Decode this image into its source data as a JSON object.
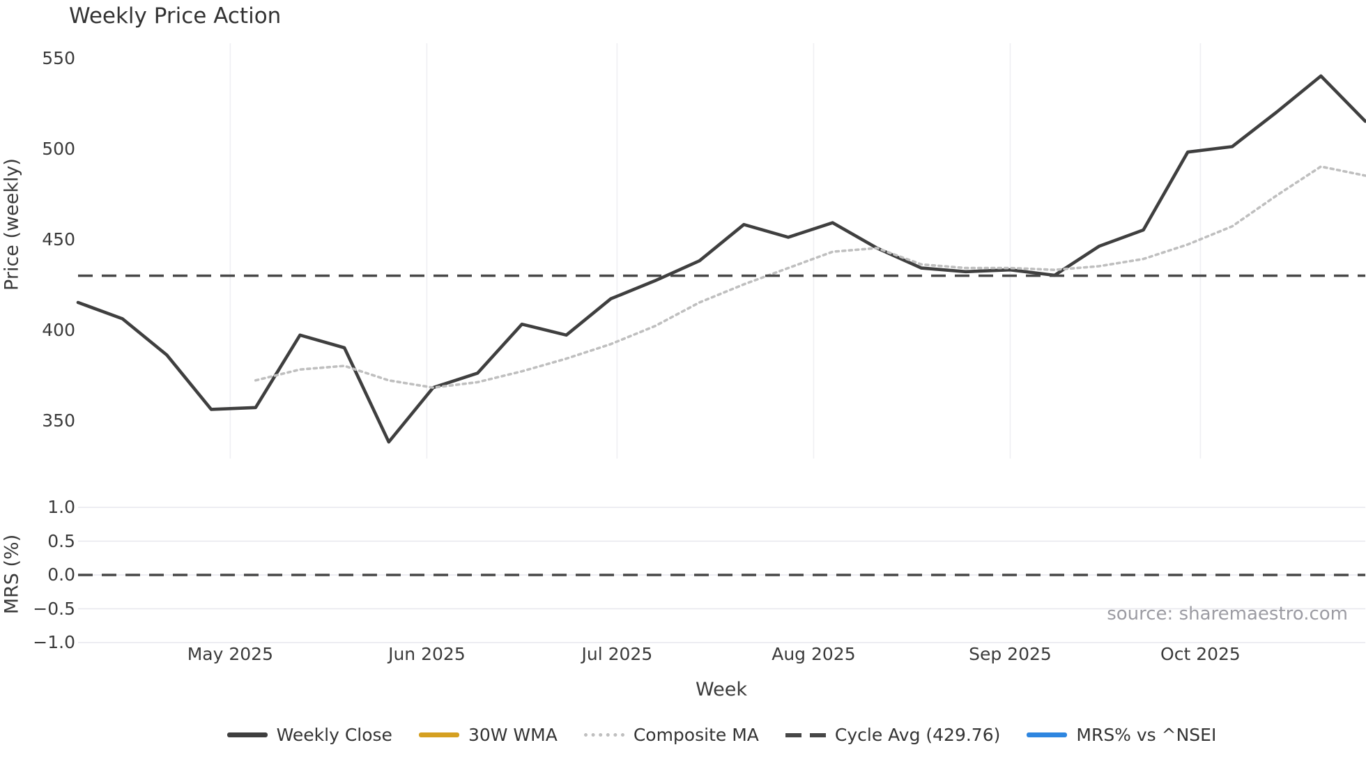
{
  "chart_data": {
    "type": "line",
    "title": "Weekly Price Action",
    "xlabel": "Week",
    "source_note": "source: sharemaestro.com",
    "x_tick_labels": [
      "May 2025",
      "Jun 2025",
      "Jul 2025",
      "Aug 2025",
      "Sep 2025",
      "Oct 2025"
    ],
    "x_tick_week_offsets": [
      3.4286,
      7.8571,
      12.1429,
      16.5714,
      21.0,
      25.2857
    ],
    "weeks_total": 29,
    "panels": [
      {
        "ylabel": "Price (weekly)",
        "ytick_labels": [
          "550",
          "500",
          "450",
          "400",
          "350"
        ],
        "ytick_values": [
          550,
          500,
          450,
          400,
          350
        ],
        "ylim": [
          328,
          559
        ],
        "cycle_avg": 429.76,
        "grid": "vertical-months-only",
        "series": [
          {
            "name": "Weekly Close",
            "color": "#3f3f3f",
            "style": "solid",
            "values": [
              415,
              406,
              386,
              356,
              357,
              397,
              390,
              338,
              368,
              376,
              403,
              397,
              417,
              427,
              438,
              458,
              451,
              459,
              445,
              434,
              432,
              433,
              430,
              446,
              455,
              498,
              501,
              520,
              540,
              515
            ]
          },
          {
            "name": "30W WMA",
            "color": "#d5a021",
            "style": "solid",
            "values": []
          },
          {
            "name": "Composite MA",
            "color": "#bfbfbf",
            "style": "dotted",
            "values": [
              null,
              null,
              null,
              null,
              372,
              378,
              380,
              372,
              368,
              371,
              377,
              384,
              392,
              402,
              415,
              425,
              434,
              443,
              445,
              436,
              434,
              434,
              433,
              435,
              439,
              447,
              457,
              474,
              490,
              485
            ]
          },
          {
            "name": "Cycle Avg (429.76)",
            "color": "#474747",
            "style": "dashed",
            "value": 429.76
          }
        ]
      },
      {
        "ylabel": "MRS (%)",
        "ytick_labels": [
          "1.0",
          "0.5",
          "0.0",
          "−0.5",
          "−1.0"
        ],
        "ytick_values": [
          1.0,
          0.5,
          0.0,
          -0.5,
          -1.0
        ],
        "ylim": [
          -1.02,
          1.02
        ],
        "zero_line": 0.0,
        "grid": "horizontal-only",
        "series": [
          {
            "name": "MRS% vs ^NSEI",
            "color": "#2e86e0",
            "style": "solid",
            "values": []
          }
        ]
      }
    ],
    "legend": [
      {
        "label": "Weekly Close",
        "color": "#3f3f3f",
        "style": "solid"
      },
      {
        "label": "30W WMA",
        "color": "#d5a021",
        "style": "solid"
      },
      {
        "label": "Composite MA",
        "color": "#bfbfbf",
        "style": "dotted"
      },
      {
        "label": "Cycle Avg (429.76)",
        "color": "#474747",
        "style": "dashed"
      },
      {
        "label": "MRS% vs ^NSEI",
        "color": "#2e86e0",
        "style": "solid"
      }
    ]
  }
}
